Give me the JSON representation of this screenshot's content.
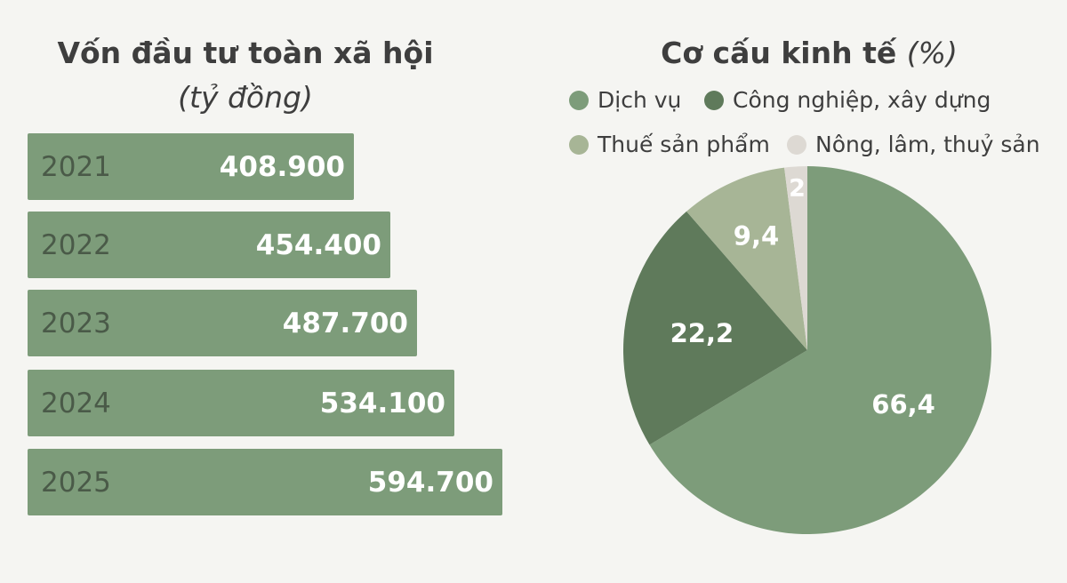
{
  "bar_chart": {
    "title": "Vốn đầu tư toàn xã hội",
    "unit": "(tỷ đồng)"
  },
  "pie_chart": {
    "title": "Cơ cấu kinh tế",
    "unit": "(%)"
  },
  "colors": {
    "bar": "#7d9c7a",
    "dich_vu": "#7d9c7a",
    "cong_nghiep": "#5f7a5b",
    "thue": "#a7b596",
    "nong_lam": "#ddd9d3"
  },
  "chart_data": [
    {
      "type": "bar",
      "orientation": "horizontal",
      "title": "Vốn đầu tư toàn xã hội",
      "subtitle": "(tỷ đồng)",
      "categories": [
        "2021",
        "2022",
        "2023",
        "2024",
        "2025"
      ],
      "values": [
        408900,
        454400,
        487700,
        534100,
        594700
      ],
      "value_labels": [
        "408.900",
        "454.400",
        "487.700",
        "534.100",
        "594.700"
      ],
      "grid": false
    },
    {
      "type": "pie",
      "title": "Cơ cấu kinh tế",
      "subtitle": "(%)",
      "labels": [
        "Dịch vụ",
        "Công nghiệp, xây dựng",
        "Thuế sản phẩm",
        "Nông, lâm, thuỷ sản"
      ],
      "values": [
        66.4,
        22.2,
        9.4,
        2
      ],
      "value_labels": [
        "66,4",
        "22,2",
        "9,4",
        "2"
      ],
      "colors": [
        "#7d9c7a",
        "#5f7a5b",
        "#a7b596",
        "#ddd9d3"
      ],
      "legend": "top"
    }
  ]
}
